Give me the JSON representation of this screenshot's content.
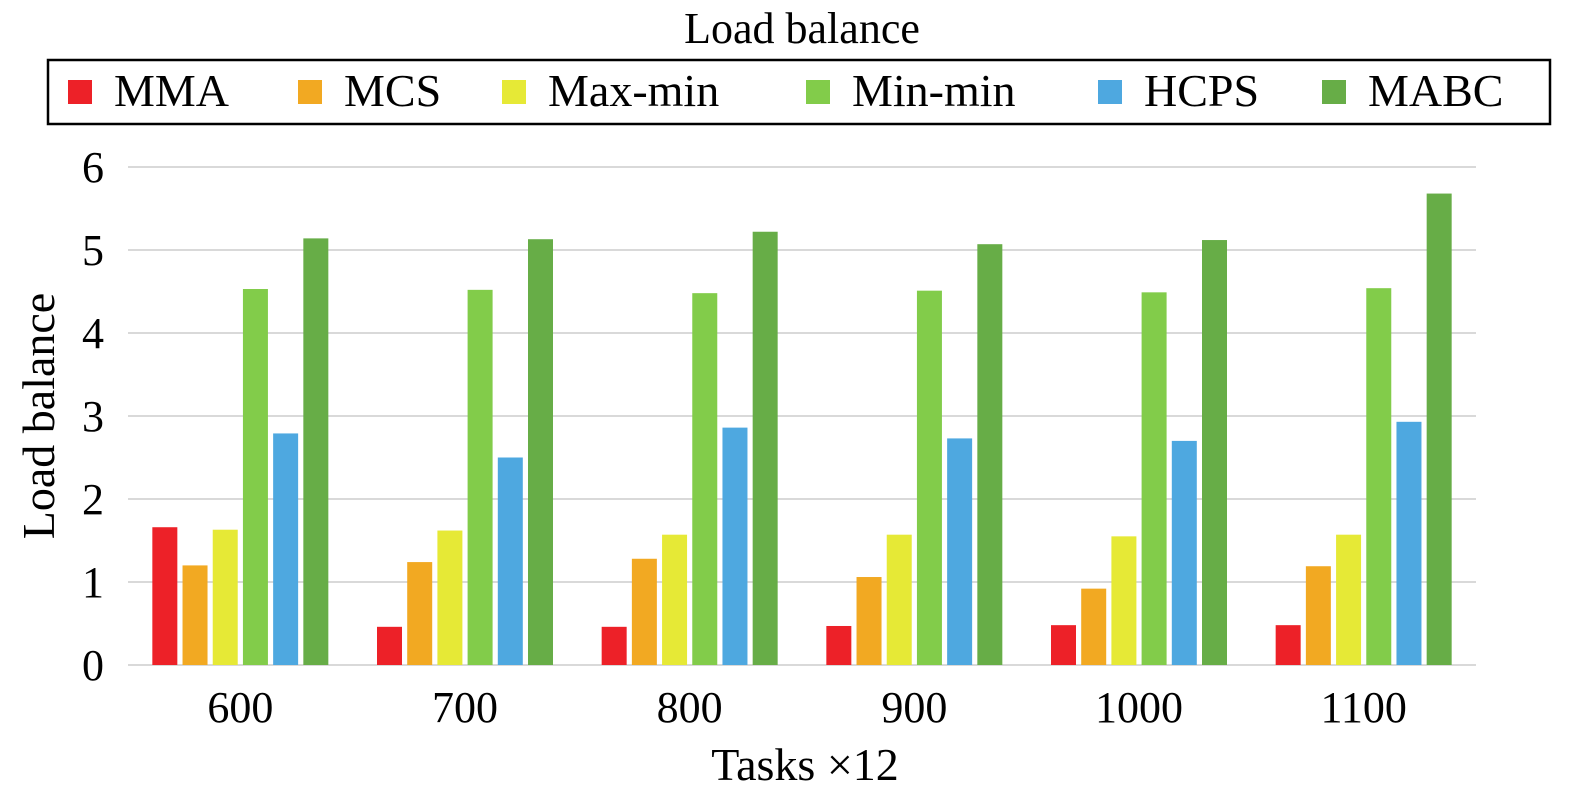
{
  "chart_data": {
    "type": "bar",
    "title": "Load balance",
    "xlabel": "Tasks ×12",
    "ylabel": "Load balance",
    "ylim": [
      0,
      6
    ],
    "yticks": [
      0,
      1,
      2,
      3,
      4,
      5,
      6
    ],
    "grid": true,
    "legend_placement": "top",
    "categories": [
      "600",
      "700",
      "800",
      "900",
      "1000",
      "1100"
    ],
    "series": [
      {
        "name": "MMA",
        "color": "#ed2128",
        "values": [
          1.66,
          0.46,
          0.46,
          0.47,
          0.48,
          0.48
        ]
      },
      {
        "name": "MCS",
        "color": "#f2a922",
        "values": [
          1.2,
          1.24,
          1.28,
          1.06,
          0.92,
          1.19
        ]
      },
      {
        "name": "Max-min",
        "color": "#e6e936",
        "values": [
          1.63,
          1.62,
          1.57,
          1.57,
          1.55,
          1.57
        ]
      },
      {
        "name": "Min-min",
        "color": "#82cc4a",
        "values": [
          4.53,
          4.52,
          4.48,
          4.51,
          4.49,
          4.54
        ]
      },
      {
        "name": "HCPS",
        "color": "#4ea8e0",
        "values": [
          2.79,
          2.5,
          2.86,
          2.73,
          2.7,
          2.93
        ]
      },
      {
        "name": "MABC",
        "color": "#67ad47",
        "values": [
          5.14,
          5.13,
          5.22,
          5.07,
          5.12,
          5.68
        ]
      }
    ]
  }
}
